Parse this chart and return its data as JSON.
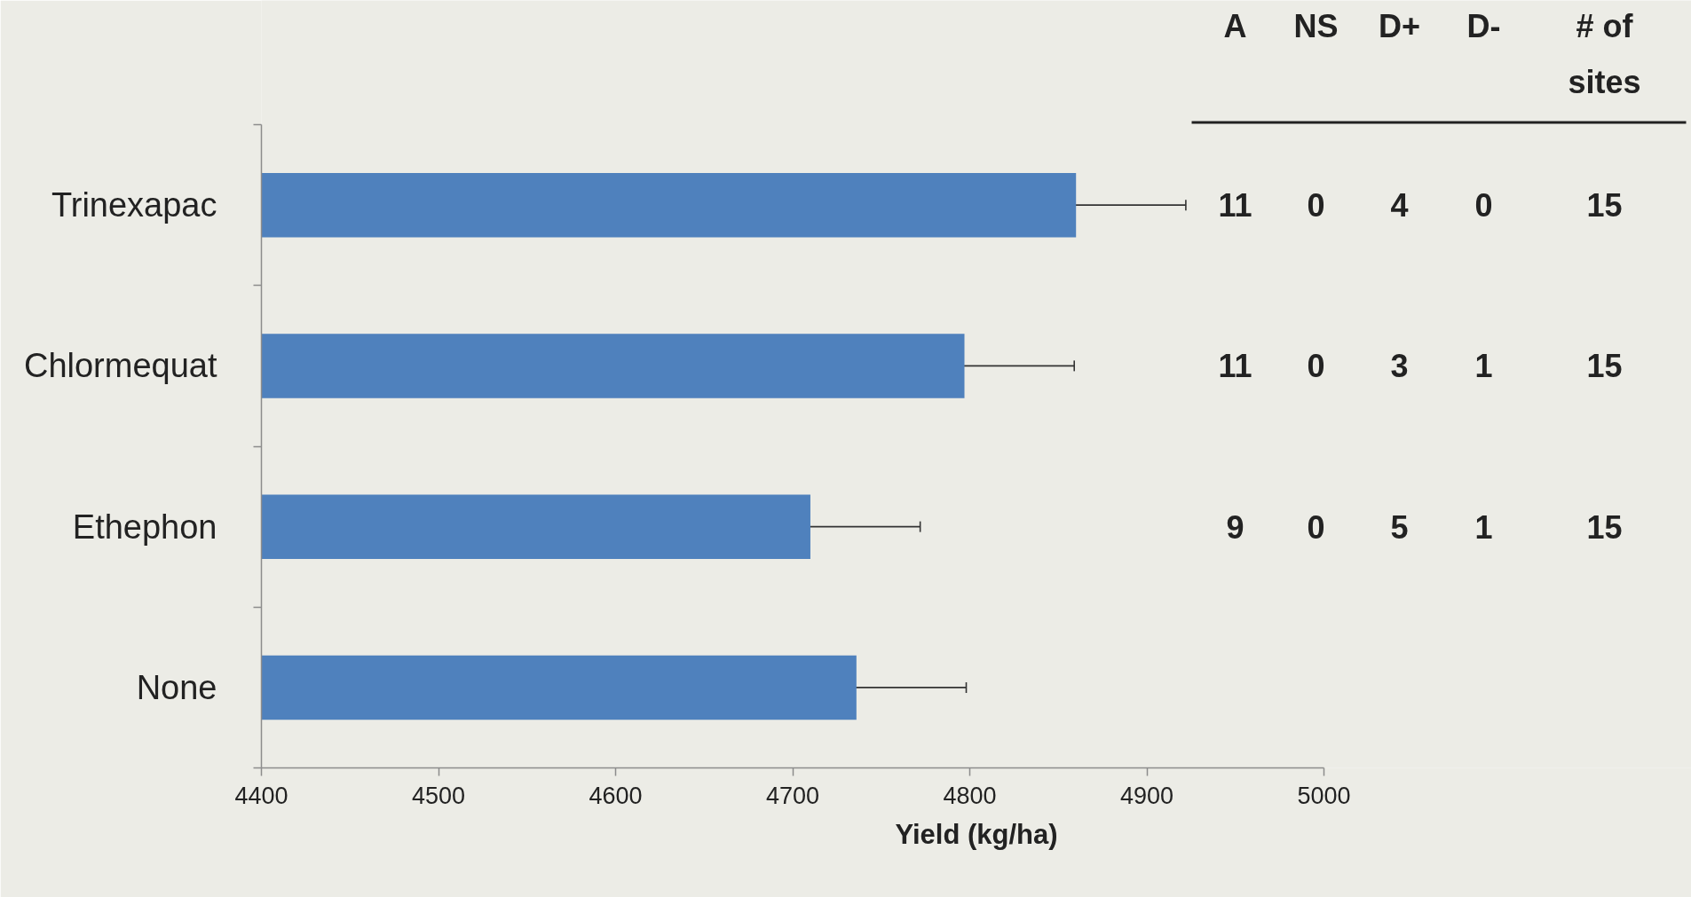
{
  "chart_data": {
    "type": "bar",
    "orientation": "horizontal",
    "categories": [
      "Trinexapac",
      "Chlormequat",
      "Ethephon",
      "None"
    ],
    "values": [
      4860,
      4797,
      4710,
      4736
    ],
    "errors": [
      62,
      62,
      62,
      62
    ],
    "color": "#4f81bd",
    "xlim": [
      4400,
      5000
    ],
    "xticks": [
      4400,
      4500,
      4600,
      4700,
      4800,
      4900,
      5000
    ],
    "xlabel": "Yield (kg/ha)",
    "grid": false,
    "annotations": [
      "A",
      "NS",
      "D+",
      "D-",
      "# of sites",
      "11",
      "0",
      "4",
      "0",
      "15",
      "11",
      "0",
      "3",
      "1",
      "15",
      "9",
      "0",
      "5",
      "1",
      "15"
    ]
  }
}
